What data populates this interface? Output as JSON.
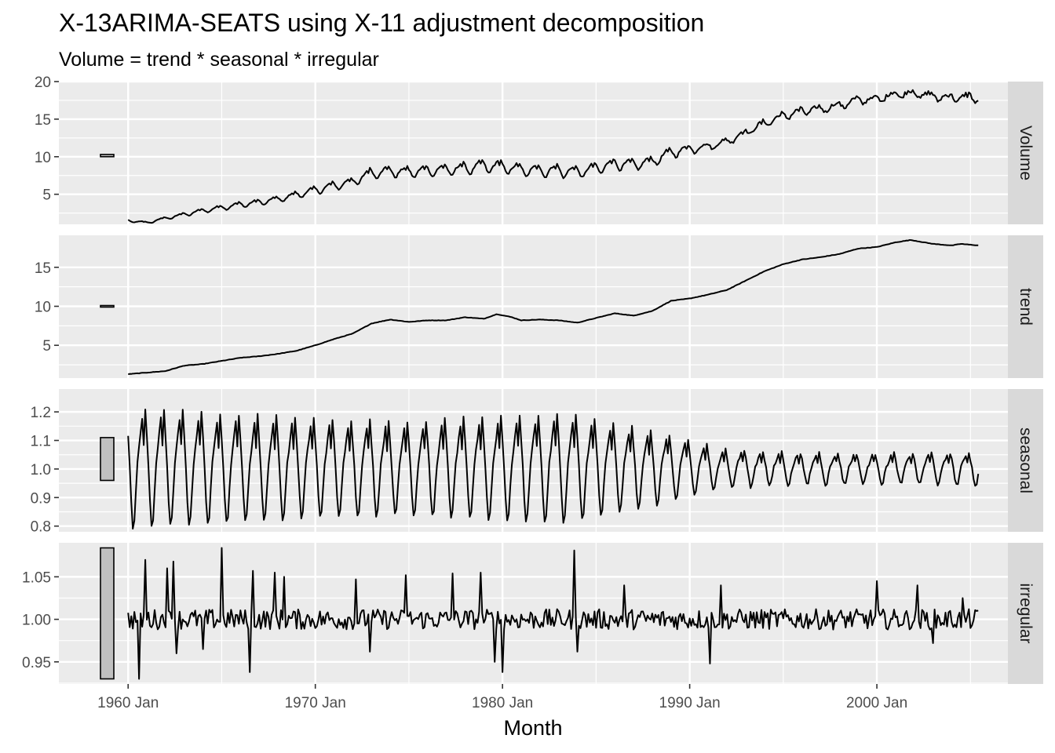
{
  "chart_data": {
    "type": "line",
    "title": "X-13ARIMA-SEATS using X-11 adjustment decomposition",
    "subtitle": "Volume = trend * seasonal * irregular",
    "xlabel": "Month",
    "x_start": "1960 Jan",
    "x_end": "2005 Jun",
    "x_ticks": [
      "1960 Jan",
      "1970 Jan",
      "1980 Jan",
      "1990 Jan",
      "2000 Jan"
    ],
    "x_tick_years": [
      1960,
      1970,
      1980,
      1990,
      2000
    ],
    "xlim_years": [
      1956.3,
      2007.0
    ],
    "grid": true,
    "color_series": "#000000",
    "color_panel": "#ebebeb",
    "color_strip": "#d9d9d9",
    "color_range_bar": "#c0c0c0",
    "panels": [
      {
        "name": "Volume",
        "ylim": [
          1.0,
          20.0
        ],
        "y_ticks": [
          5,
          10,
          15,
          20
        ],
        "y_tick_labels": [
          "5",
          "10",
          "15",
          "20"
        ],
        "range_bar": [
          10.0,
          10.3
        ],
        "range_bar_value": 10.15,
        "keypoints": [
          [
            1960.0,
            1.5
          ],
          [
            1961.0,
            1.2
          ],
          [
            1962.0,
            1.8
          ],
          [
            1963.0,
            2.3
          ],
          [
            1964.0,
            2.8
          ],
          [
            1965.0,
            3.2
          ],
          [
            1966.0,
            3.6
          ],
          [
            1967.0,
            3.9
          ],
          [
            1968.0,
            4.3
          ],
          [
            1969.0,
            4.9
          ],
          [
            1970.0,
            5.5
          ],
          [
            1971.0,
            6.1
          ],
          [
            1972.0,
            6.6
          ],
          [
            1973.0,
            7.8
          ],
          [
            1974.0,
            8.0
          ],
          [
            1975.0,
            7.9
          ],
          [
            1976.0,
            8.1
          ],
          [
            1977.0,
            8.2
          ],
          [
            1978.0,
            8.4
          ],
          [
            1979.0,
            8.7
          ],
          [
            1980.0,
            8.6
          ],
          [
            1981.0,
            8.2
          ],
          [
            1982.0,
            8.1
          ],
          [
            1983.0,
            8.1
          ],
          [
            1984.0,
            7.9
          ],
          [
            1985.0,
            8.4
          ],
          [
            1986.0,
            9.0
          ],
          [
            1987.0,
            8.9
          ],
          [
            1988.0,
            9.3
          ],
          [
            1989.0,
            10.5
          ],
          [
            1990.0,
            11.0
          ],
          [
            1991.0,
            11.3
          ],
          [
            1992.0,
            12.0
          ],
          [
            1993.0,
            13.2
          ],
          [
            1994.0,
            14.4
          ],
          [
            1995.0,
            15.4
          ],
          [
            1996.0,
            16.0
          ],
          [
            1997.0,
            16.3
          ],
          [
            1998.0,
            16.8
          ],
          [
            1999.0,
            17.5
          ],
          [
            2000.0,
            17.6
          ],
          [
            2001.0,
            18.3
          ],
          [
            2002.0,
            18.4
          ],
          [
            2003.0,
            18.0
          ],
          [
            2004.0,
            17.8
          ],
          [
            2005.0,
            17.9
          ],
          [
            2005.42,
            17.6
          ]
        ]
      },
      {
        "name": "trend",
        "ylim": [
          0.8,
          19.1
        ],
        "y_ticks": [
          5,
          10,
          15
        ],
        "y_tick_labels": [
          "5",
          "10",
          "15"
        ],
        "range_bar": [
          9.9,
          10.1
        ],
        "range_bar_value": 10.0,
        "keypoints": [
          [
            1960.0,
            1.3
          ],
          [
            1961.0,
            1.5
          ],
          [
            1962.0,
            1.7
          ],
          [
            1963.0,
            2.4
          ],
          [
            1964.0,
            2.6
          ],
          [
            1965.0,
            3.0
          ],
          [
            1966.0,
            3.4
          ],
          [
            1967.0,
            3.6
          ],
          [
            1968.0,
            3.9
          ],
          [
            1969.0,
            4.3
          ],
          [
            1970.0,
            5.0
          ],
          [
            1971.0,
            5.8
          ],
          [
            1972.0,
            6.5
          ],
          [
            1973.0,
            7.8
          ],
          [
            1974.0,
            8.3
          ],
          [
            1975.0,
            8.0
          ],
          [
            1976.0,
            8.2
          ],
          [
            1977.0,
            8.2
          ],
          [
            1978.0,
            8.6
          ],
          [
            1979.0,
            8.4
          ],
          [
            1979.7,
            9.0
          ],
          [
            1980.5,
            8.6
          ],
          [
            1981.0,
            8.2
          ],
          [
            1982.0,
            8.3
          ],
          [
            1983.0,
            8.2
          ],
          [
            1984.0,
            7.9
          ],
          [
            1985.0,
            8.5
          ],
          [
            1986.0,
            9.1
          ],
          [
            1987.0,
            8.8
          ],
          [
            1988.0,
            9.4
          ],
          [
            1989.0,
            10.7
          ],
          [
            1990.0,
            11.0
          ],
          [
            1991.0,
            11.5
          ],
          [
            1992.0,
            12.1
          ],
          [
            1993.0,
            13.3
          ],
          [
            1994.0,
            14.5
          ],
          [
            1995.0,
            15.4
          ],
          [
            1996.0,
            16.0
          ],
          [
            1997.0,
            16.3
          ],
          [
            1998.0,
            16.7
          ],
          [
            1999.0,
            17.4
          ],
          [
            2000.0,
            17.6
          ],
          [
            2001.0,
            18.2
          ],
          [
            2001.8,
            18.5
          ],
          [
            2003.0,
            18.0
          ],
          [
            2004.0,
            17.8
          ],
          [
            2004.5,
            18.0
          ],
          [
            2005.42,
            17.8
          ]
        ]
      },
      {
        "name": "seasonal",
        "ylim": [
          0.78,
          1.28
        ],
        "y_ticks": [
          0.8,
          0.9,
          1.0,
          1.1,
          1.2
        ],
        "y_tick_labels": [
          "0.8",
          "0.9",
          "1.0",
          "1.1",
          "1.2"
        ],
        "range_bar": [
          0.96,
          1.11
        ],
        "range_bar_value": 1.035,
        "amplitude_keypoints": [
          [
            1960.0,
            0.22
          ],
          [
            1965.0,
            0.2
          ],
          [
            1970.0,
            0.18
          ],
          [
            1975.0,
            0.17
          ],
          [
            1980.0,
            0.19
          ],
          [
            1983.5,
            0.2
          ],
          [
            1986.0,
            0.16
          ],
          [
            1988.0,
            0.14
          ],
          [
            1990.0,
            0.1
          ],
          [
            1992.0,
            0.07
          ],
          [
            1995.0,
            0.06
          ],
          [
            2000.0,
            0.055
          ],
          [
            2005.5,
            0.06
          ]
        ]
      },
      {
        "name": "irregular",
        "ylim": [
          0.924,
          1.09
        ],
        "y_ticks": [
          0.95,
          1.0,
          1.05
        ],
        "y_tick_labels": [
          "0.95",
          "1.00",
          "1.05"
        ],
        "range_bar": [
          0.93,
          1.084
        ],
        "range_bar_value": 1.007,
        "spikes": [
          [
            1960.6,
            0.93
          ],
          [
            1960.9,
            1.07
          ],
          [
            1962.1,
            1.06
          ],
          [
            1962.4,
            1.068
          ],
          [
            1962.6,
            0.96
          ],
          [
            1964.0,
            0.965
          ],
          [
            1965.0,
            1.084
          ],
          [
            1966.5,
            0.938
          ],
          [
            1966.7,
            1.057
          ],
          [
            1967.8,
            1.055
          ],
          [
            1968.3,
            1.05
          ],
          [
            1972.2,
            1.047
          ],
          [
            1972.9,
            0.962
          ],
          [
            1974.8,
            1.052
          ],
          [
            1977.3,
            1.054
          ],
          [
            1978.8,
            1.055
          ],
          [
            1979.6,
            0.95
          ],
          [
            1980.0,
            0.938
          ],
          [
            1983.8,
            1.081
          ],
          [
            1984.0,
            0.962
          ],
          [
            1986.5,
            1.04
          ],
          [
            1991.1,
            0.948
          ],
          [
            1991.7,
            1.04
          ],
          [
            2000.0,
            1.045
          ],
          [
            2002.2,
            1.04
          ],
          [
            2003.0,
            0.972
          ],
          [
            2004.6,
            1.025
          ]
        ]
      }
    ]
  }
}
